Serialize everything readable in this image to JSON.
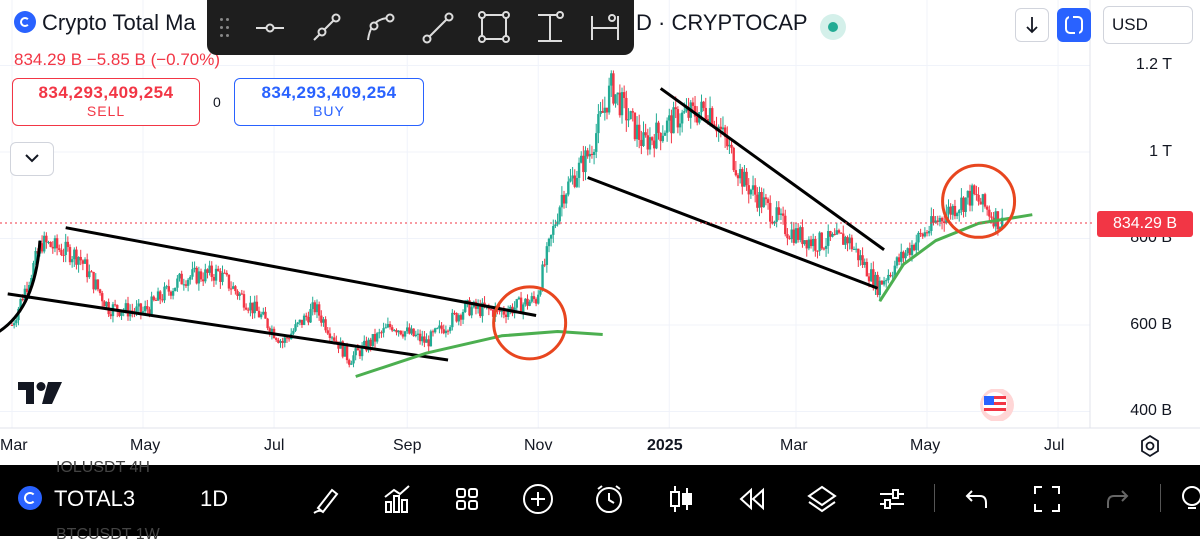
{
  "header": {
    "title": "Crypto Total Ma",
    "exchange": "D · CRYPTOCAP",
    "price_line": "834.29 B  −5.85 B (−0.70%)",
    "currency": "USD"
  },
  "trade": {
    "sell_value": "834,293,409,254",
    "sell_label": "SELL",
    "buy_value": "834,293,409,254",
    "buy_label": "BUY",
    "spread": "0"
  },
  "drawing_toolbar": {
    "tools": [
      "horizontal-line-icon",
      "ray-icon",
      "path-icon",
      "trend-line-icon",
      "rectangle-icon",
      "vertical-measure-icon",
      "horizontal-measure-icon"
    ]
  },
  "price_axis": {
    "labels": [
      "1.2 T",
      "1 T",
      "800 B",
      "600 B",
      "400 B"
    ],
    "current_price_tag": "834.29 B"
  },
  "time_axis": {
    "labels": [
      "Mar",
      "May",
      "Jul",
      "Sep",
      "Nov",
      "2025",
      "Mar",
      "May",
      "Jul"
    ]
  },
  "bottom_bar": {
    "symbol": "TOTAL3",
    "interval": "1D",
    "ghost_top": "IOLUSDT     4H",
    "ghost_bottom": "BTCUSDT     1W",
    "icons": [
      "drawing-brush-icon",
      "indicators-icon",
      "layouts-grid-icon",
      "add-icon",
      "alert-clock-icon",
      "candles-icon",
      "replay-icon",
      "layers-icon",
      "settings-sliders-icon",
      "undo-icon",
      "fullscreen-icon",
      "redo-icon",
      "bulb-icon"
    ]
  },
  "colors": {
    "up": "#22ab94",
    "down": "#f23645",
    "accent": "#2962ff",
    "annotation_green": "#4caf50",
    "annotation_red": "#e8461f"
  },
  "chart_data": {
    "type": "candlestick",
    "symbol": "TOTAL3",
    "interval": "1D",
    "ylim": [
      380000000000,
      1250000000000
    ],
    "current_price": 834290000000,
    "close_series_approx": [
      {
        "date": "2024-03-01",
        "close": 600000000000
      },
      {
        "date": "2024-03-15",
        "close": 790000000000
      },
      {
        "date": "2024-04-01",
        "close": 760000000000
      },
      {
        "date": "2024-04-15",
        "close": 640000000000
      },
      {
        "date": "2024-05-01",
        "close": 630000000000
      },
      {
        "date": "2024-05-20",
        "close": 710000000000
      },
      {
        "date": "2024-06-05",
        "close": 720000000000
      },
      {
        "date": "2024-06-25",
        "close": 620000000000
      },
      {
        "date": "2024-07-05",
        "close": 560000000000
      },
      {
        "date": "2024-07-20",
        "close": 640000000000
      },
      {
        "date": "2024-08-05",
        "close": 520000000000
      },
      {
        "date": "2024-08-25",
        "close": 600000000000
      },
      {
        "date": "2024-09-10",
        "close": 560000000000
      },
      {
        "date": "2024-09-28",
        "close": 640000000000
      },
      {
        "date": "2024-10-15",
        "close": 630000000000
      },
      {
        "date": "2024-10-31",
        "close": 660000000000
      },
      {
        "date": "2024-11-12",
        "close": 900000000000
      },
      {
        "date": "2024-11-25",
        "close": 1000000000000
      },
      {
        "date": "2024-12-05",
        "close": 1150000000000
      },
      {
        "date": "2024-12-20",
        "close": 1020000000000
      },
      {
        "date": "2025-01-05",
        "close": 1080000000000
      },
      {
        "date": "2025-01-20",
        "close": 1100000000000
      },
      {
        "date": "2025-02-05",
        "close": 930000000000
      },
      {
        "date": "2025-02-25",
        "close": 820000000000
      },
      {
        "date": "2025-03-10",
        "close": 790000000000
      },
      {
        "date": "2025-03-25",
        "close": 800000000000
      },
      {
        "date": "2025-04-08",
        "close": 690000000000
      },
      {
        "date": "2025-04-25",
        "close": 790000000000
      },
      {
        "date": "2025-05-10",
        "close": 860000000000
      },
      {
        "date": "2025-05-22",
        "close": 900000000000
      },
      {
        "date": "2025-06-05",
        "close": 834290000000
      }
    ],
    "annotations": [
      {
        "type": "trend-line",
        "label": "falling channel 2024 (upper)",
        "color": "black"
      },
      {
        "type": "trend-line",
        "label": "falling channel 2024 (lower)",
        "color": "black"
      },
      {
        "type": "trend-line",
        "label": "falling wedge 2025 (upper)",
        "color": "black"
      },
      {
        "type": "trend-line",
        "label": "falling wedge 2025 (lower)",
        "color": "black"
      },
      {
        "type": "arc",
        "label": "rounding bottom 2024",
        "color": "green"
      },
      {
        "type": "arc",
        "label": "rounding bottom 2025",
        "color": "green"
      },
      {
        "type": "circle",
        "label": "breakout Oct 2024",
        "color": "red"
      },
      {
        "type": "circle",
        "label": "current consolidation May 2025",
        "color": "red"
      }
    ]
  }
}
